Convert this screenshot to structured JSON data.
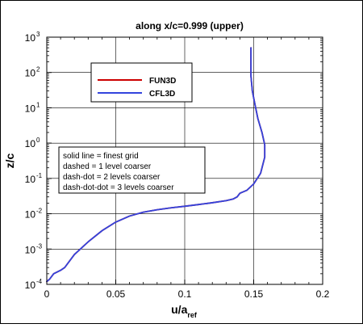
{
  "chart_data": {
    "type": "line",
    "title": "along x/c=0.999 (upper)",
    "xlabel": {
      "main": "u/a",
      "sub": "ref"
    },
    "ylabel": "z/c",
    "xlim": [
      0,
      0.2
    ],
    "ylim": [
      0.0001,
      1000
    ],
    "yscale": "log",
    "grid": true,
    "xticks": [
      {
        "value": 0,
        "label": "0"
      },
      {
        "value": 0.05,
        "label": "0.05"
      },
      {
        "value": 0.1,
        "label": "0.1"
      },
      {
        "value": 0.15,
        "label": "0.15"
      },
      {
        "value": 0.2,
        "label": "0.2"
      }
    ],
    "yticks": [
      {
        "value": 0.0001,
        "base": "10",
        "exp": "-4"
      },
      {
        "value": 0.001,
        "base": "10",
        "exp": "-3"
      },
      {
        "value": 0.01,
        "base": "10",
        "exp": "-2"
      },
      {
        "value": 0.1,
        "base": "10",
        "exp": "-1"
      },
      {
        "value": 1,
        "base": "10",
        "exp": "0"
      },
      {
        "value": 10,
        "base": "10",
        "exp": "1"
      },
      {
        "value": 100,
        "base": "10",
        "exp": "2"
      },
      {
        "value": 1000,
        "base": "10",
        "exp": "3"
      }
    ],
    "legend": {
      "placement": "upper-left"
    },
    "series": [
      {
        "name": "FUN3D",
        "color": "#cc0000",
        "x": [
          0.0,
          0.002,
          0.005,
          0.01,
          0.013,
          0.02,
          0.03,
          0.04,
          0.05,
          0.06,
          0.07,
          0.08,
          0.09,
          0.1,
          0.11,
          0.12,
          0.13,
          0.135,
          0.138,
          0.14,
          0.145,
          0.15,
          0.155,
          0.158,
          0.158,
          0.156,
          0.153,
          0.151,
          0.149,
          0.148,
          0.148,
          0.148
        ],
        "y": [
          0.00012,
          0.00014,
          0.0002,
          0.00025,
          0.0003,
          0.0007,
          0.0016,
          0.0033,
          0.0058,
          0.0086,
          0.0111,
          0.013,
          0.0147,
          0.0163,
          0.0182,
          0.0205,
          0.0235,
          0.026,
          0.03,
          0.038,
          0.046,
          0.07,
          0.14,
          0.4,
          0.9,
          2,
          5,
          12,
          30,
          80,
          200,
          500
        ]
      },
      {
        "name": "CFL3D",
        "color": "#3344dd",
        "x": [
          0.0,
          0.002,
          0.005,
          0.01,
          0.013,
          0.02,
          0.03,
          0.04,
          0.05,
          0.06,
          0.07,
          0.08,
          0.09,
          0.1,
          0.11,
          0.12,
          0.13,
          0.135,
          0.138,
          0.14,
          0.145,
          0.15,
          0.155,
          0.158,
          0.158,
          0.156,
          0.153,
          0.151,
          0.149,
          0.148,
          0.148,
          0.148
        ],
        "y": [
          0.00012,
          0.00014,
          0.0002,
          0.00025,
          0.0003,
          0.0007,
          0.0016,
          0.0033,
          0.0058,
          0.0086,
          0.0111,
          0.013,
          0.0147,
          0.0163,
          0.0182,
          0.0205,
          0.0235,
          0.026,
          0.03,
          0.038,
          0.046,
          0.07,
          0.14,
          0.4,
          0.9,
          2,
          5,
          12,
          30,
          80,
          200,
          500
        ]
      }
    ],
    "annotation": [
      "solid line = finest grid",
      "dashed = 1 level coarser",
      "dash-dot = 2 levels coarser",
      "dash-dot-dot = 3 levels coarser"
    ]
  }
}
